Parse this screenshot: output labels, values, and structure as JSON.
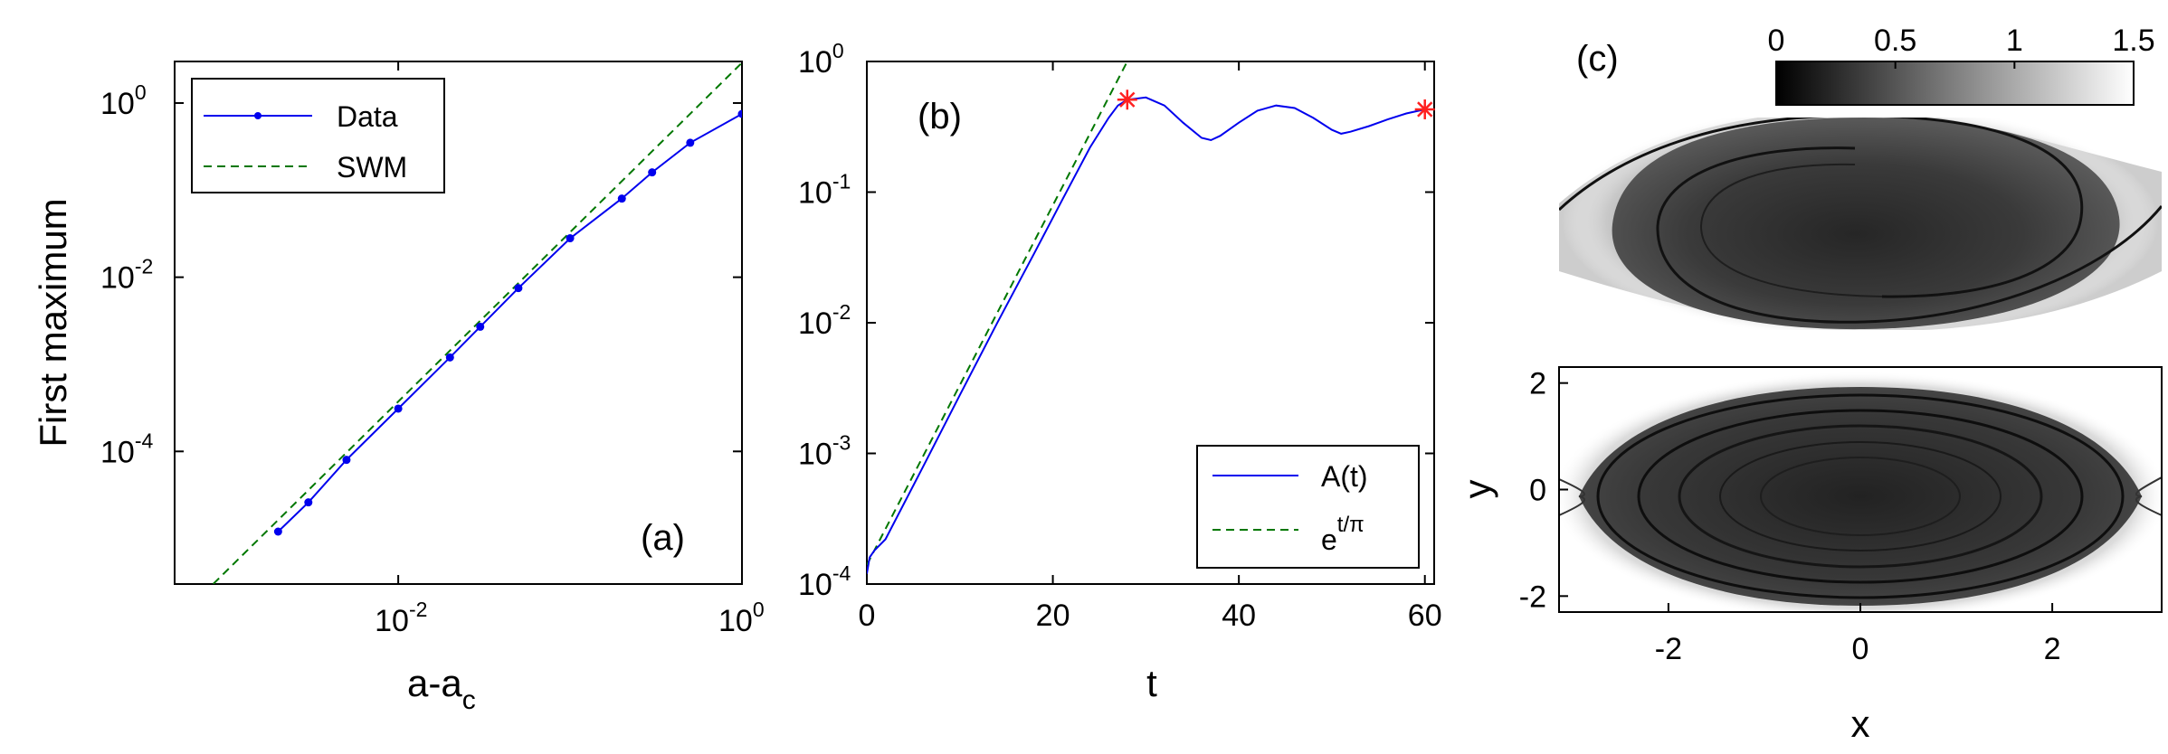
{
  "chart_data": [
    {
      "id": "a",
      "type": "line",
      "panel_label": "(a)",
      "xlabel": "a-a",
      "xlabel_sub": "c",
      "ylabel": "First maximum",
      "xscale": "log",
      "yscale": "log",
      "xlim": [
        0.0005,
        1
      ],
      "ylim": [
        3e-06,
        3
      ],
      "xticks": [
        {
          "base": "10",
          "exp": "-2",
          "value": 0.01
        },
        {
          "base": "10",
          "exp": "0",
          "value": 1
        }
      ],
      "yticks": [
        {
          "base": "10",
          "exp": "-4",
          "value": 0.0001
        },
        {
          "base": "10",
          "exp": "-2",
          "value": 0.01
        },
        {
          "base": "10",
          "exp": "0",
          "value": 1
        }
      ],
      "legend_position": "top-left",
      "series": [
        {
          "name": "Data",
          "color": "#0000ee",
          "style": "solid-dots",
          "x": [
            0.002,
            0.003,
            0.005,
            0.01,
            0.02,
            0.03,
            0.05,
            0.1,
            0.2,
            0.3,
            0.5,
            1.0
          ],
          "y": [
            1.2e-05,
            2.6e-05,
            8e-05,
            0.00031,
            0.0012,
            0.0027,
            0.0075,
            0.028,
            0.08,
            0.16,
            0.35,
            0.75
          ]
        },
        {
          "name": "SWM",
          "color": "#007700",
          "style": "dashed",
          "x": [
            0.0005,
            1.0
          ],
          "y": [
            1.1e-06,
            2.9
          ]
        }
      ]
    },
    {
      "id": "b",
      "type": "line",
      "panel_label": "(b)",
      "xlabel": "t",
      "xscale": "linear",
      "yscale": "log",
      "xlim": [
        0,
        61
      ],
      "ylim": [
        0.0001,
        1
      ],
      "xticks": [
        "0",
        "20",
        "40",
        "60"
      ],
      "yticks": [
        {
          "base": "10",
          "exp": "-4",
          "value": 0.0001
        },
        {
          "base": "10",
          "exp": "-3",
          "value": 0.001
        },
        {
          "base": "10",
          "exp": "-2",
          "value": 0.01
        },
        {
          "base": "10",
          "exp": "-1",
          "value": 0.1
        },
        {
          "base": "10",
          "exp": "0",
          "value": 1
        }
      ],
      "legend_position": "bottom-right",
      "series": [
        {
          "name": "A(t)",
          "color": "#0000ee",
          "style": "solid",
          "x": [
            0,
            0.3,
            0.8,
            2,
            6,
            10,
            14,
            18,
            21,
            24,
            26,
            27,
            28,
            30,
            32,
            34,
            36,
            37,
            38,
            40,
            42,
            44,
            46,
            48,
            50,
            51,
            52,
            54,
            56,
            58,
            60
          ],
          "y": [
            0.00012,
            0.00016,
            0.00018,
            0.00022,
            0.00078,
            0.0028,
            0.0099,
            0.034,
            0.087,
            0.22,
            0.37,
            0.46,
            0.51,
            0.53,
            0.46,
            0.34,
            0.26,
            0.25,
            0.27,
            0.34,
            0.42,
            0.46,
            0.44,
            0.37,
            0.3,
            0.28,
            0.29,
            0.32,
            0.36,
            0.4,
            0.43
          ]
        },
        {
          "name": "e",
          "name_superscript": "t/π",
          "color": "#007700",
          "style": "dashed",
          "x": [
            0,
            28
          ],
          "y": [
            0.00014,
            1.0
          ]
        }
      ],
      "markers": [
        {
          "x": 28,
          "y": 0.51,
          "color": "#ff2020",
          "symbol": "asterisk"
        },
        {
          "x": 60,
          "y": 0.43,
          "color": "#ff2020",
          "symbol": "asterisk"
        }
      ]
    },
    {
      "id": "c",
      "type": "heatmap",
      "panel_label": "(c)",
      "colormap": "gray",
      "clim": [
        0,
        1.5
      ],
      "colorbar_ticks": [
        "0",
        "0.5",
        "1",
        "1.5"
      ],
      "xlabel": "x",
      "ylabel": "y",
      "xlim": [
        -3.14,
        3.14
      ],
      "ylim": [
        -2.3,
        2.3
      ],
      "xticks": [
        "-2",
        "0",
        "2"
      ],
      "yticks": [
        "2",
        "0",
        "-2"
      ]
    }
  ]
}
